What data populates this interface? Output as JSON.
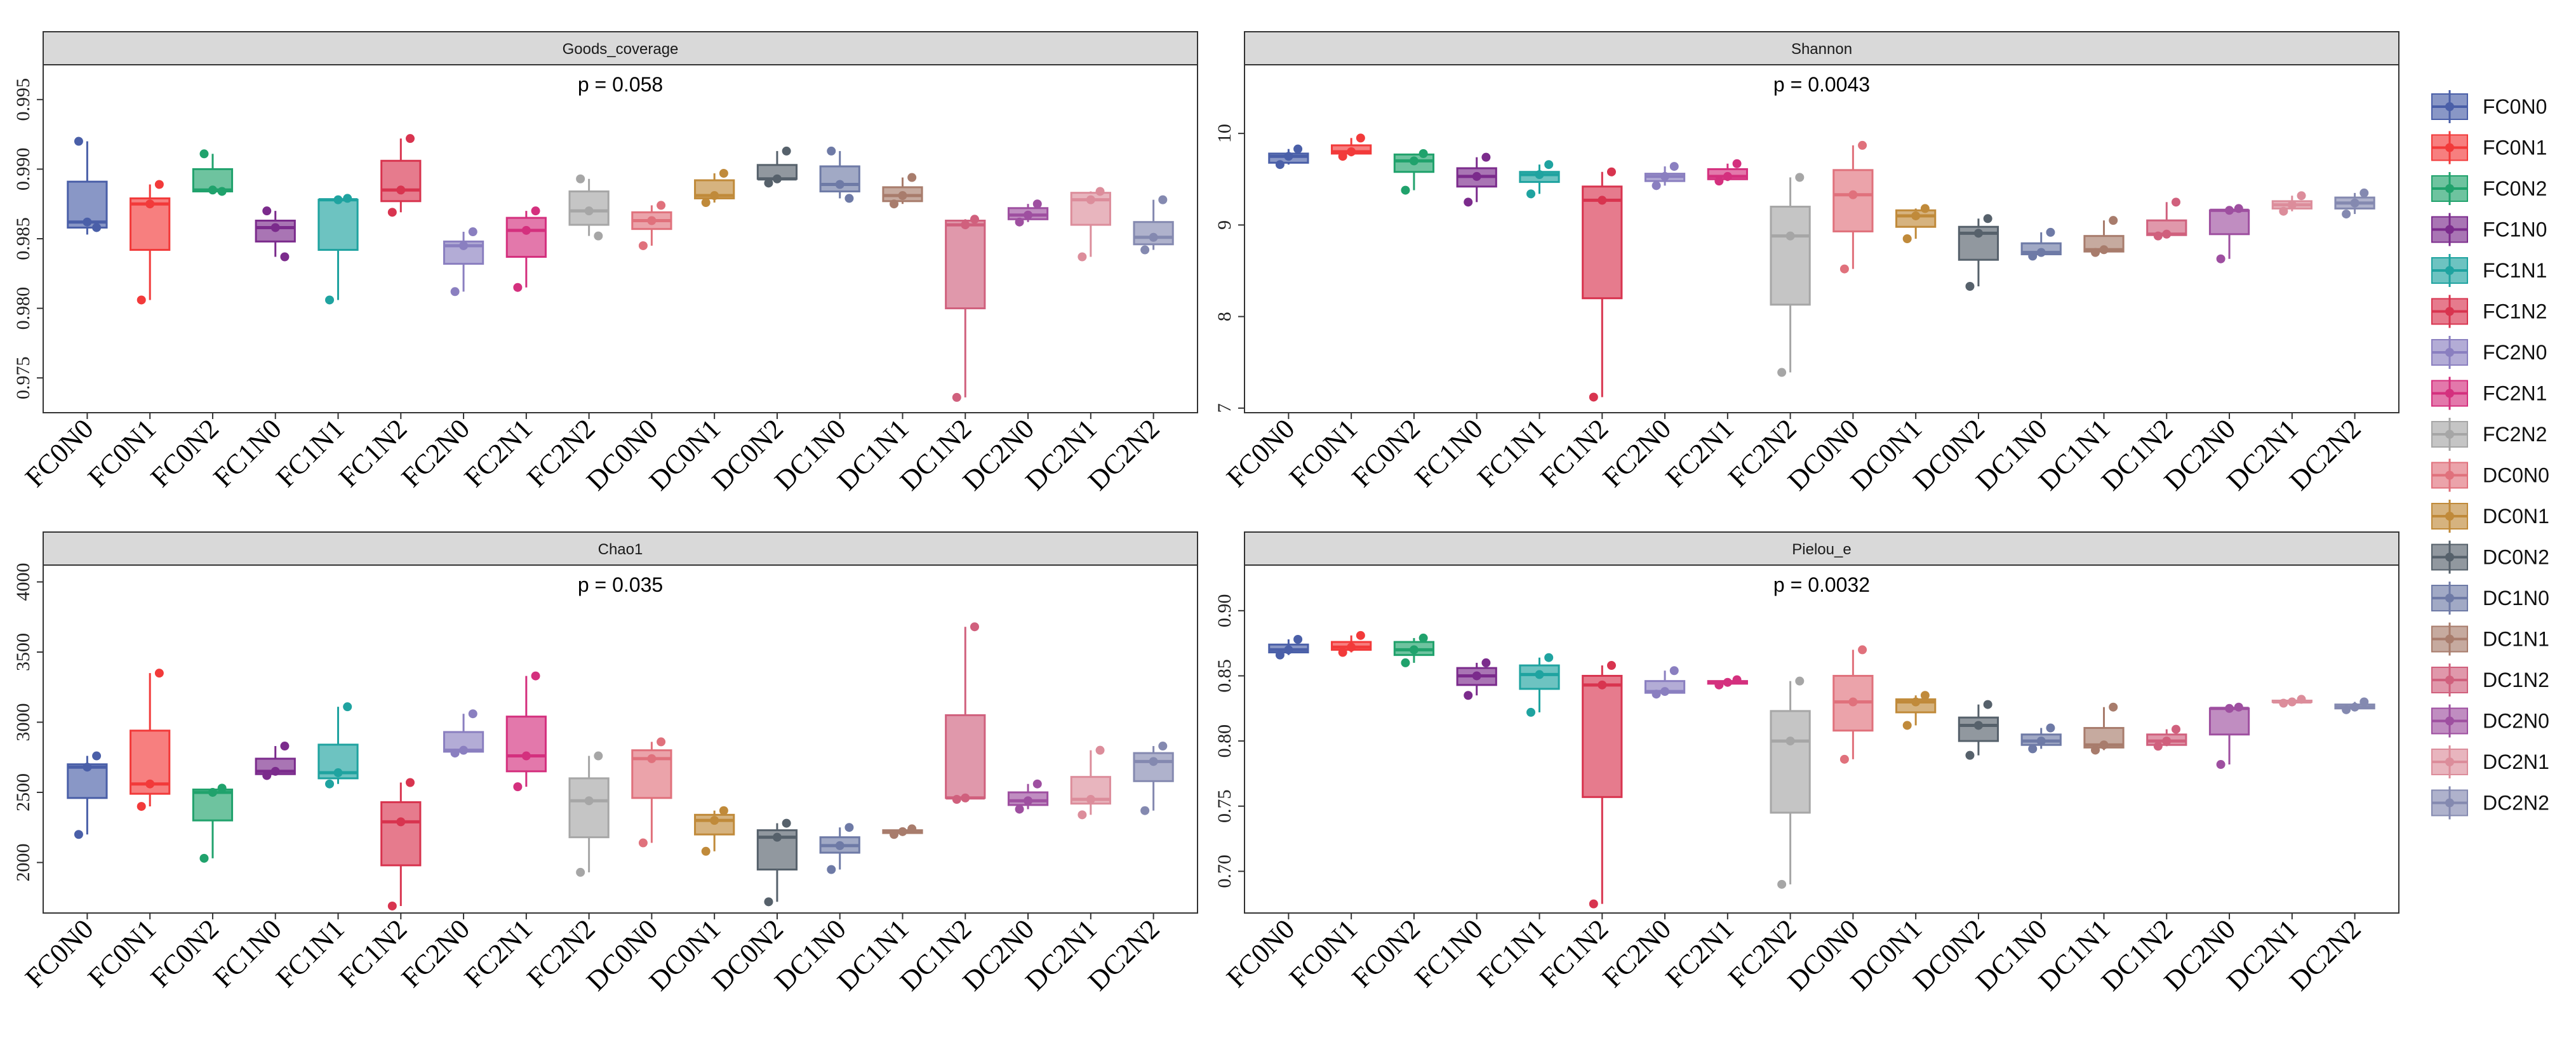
{
  "groups": [
    "FC0N0",
    "FC0N1",
    "FC0N2",
    "FC1N0",
    "FC1N1",
    "FC1N2",
    "FC2N0",
    "FC2N1",
    "FC2N2",
    "DC0N0",
    "DC0N1",
    "DC0N2",
    "DC1N0",
    "DC1N1",
    "DC1N2",
    "DC2N0",
    "DC2N1",
    "DC2N2"
  ],
  "colors": [
    "#4a5fa8",
    "#f23a3a",
    "#20a26c",
    "#7b2b8c",
    "#1fa3a0",
    "#d8344f",
    "#8a7fc0",
    "#d4307e",
    "#a6a6a6",
    "#e0717c",
    "#c08a3a",
    "#56616b",
    "#6e7aa6",
    "#a87c6c",
    "#d0607d",
    "#9e4fa0",
    "#dc8d9b",
    "#8489b0"
  ],
  "legend": {
    "items": [
      "FC0N0",
      "FC0N1",
      "FC0N2",
      "FC1N0",
      "FC1N1",
      "FC1N2",
      "FC2N0",
      "FC2N1",
      "FC2N2",
      "DC0N0",
      "DC0N1",
      "DC0N2",
      "DC1N0",
      "DC1N1",
      "DC1N2",
      "DC2N0",
      "DC2N1",
      "DC2N2"
    ]
  },
  "chart_data": [
    {
      "type": "box",
      "title": "Goods_coverage",
      "p_label": "p = 0.058",
      "ylim": [
        0.9725,
        0.9975
      ],
      "yticks": [
        0.975,
        0.98,
        0.985,
        0.99,
        0.995
      ],
      "ytick_labels": [
        "0.975",
        "0.980",
        "0.985",
        "0.990",
        "0.995"
      ],
      "boxes": [
        [
          0.9853,
          0.9858,
          0.9862,
          0.9891,
          0.992
        ],
        [
          0.9806,
          0.9842,
          0.9875,
          0.9879,
          0.9889
        ],
        [
          0.9883,
          0.9884,
          0.9885,
          0.99,
          0.9911
        ],
        [
          0.9837,
          0.9848,
          0.9858,
          0.9863,
          0.987
        ],
        [
          0.9806,
          0.9842,
          0.9878,
          0.9878,
          0.9879
        ],
        [
          0.9869,
          0.9877,
          0.9885,
          0.9906,
          0.9922
        ],
        [
          0.9812,
          0.9832,
          0.9845,
          0.9848,
          0.9855
        ],
        [
          0.9815,
          0.9837,
          0.9856,
          0.9865,
          0.987
        ],
        [
          0.9852,
          0.986,
          0.987,
          0.9884,
          0.9893
        ],
        [
          0.9845,
          0.9857,
          0.9863,
          0.9869,
          0.9874
        ],
        [
          0.9876,
          0.9879,
          0.9881,
          0.9892,
          0.9897
        ],
        [
          0.989,
          0.9893,
          0.9893,
          0.9903,
          0.9913
        ],
        [
          0.9879,
          0.9884,
          0.9889,
          0.9902,
          0.9913
        ],
        [
          0.9875,
          0.9877,
          0.9881,
          0.9887,
          0.9894
        ],
        [
          0.9736,
          0.98,
          0.986,
          0.9863,
          0.9864
        ],
        [
          0.9862,
          0.9864,
          0.9867,
          0.9872,
          0.9875
        ],
        [
          0.9837,
          0.986,
          0.9878,
          0.9883,
          0.9884
        ],
        [
          0.9842,
          0.9846,
          0.9851,
          0.9862,
          0.9878
        ]
      ],
      "points": [
        [
          0.992,
          0.9862,
          0.9858
        ],
        [
          0.9806,
          0.9875,
          0.9889
        ],
        [
          0.9911,
          0.9885,
          0.9884
        ],
        [
          0.987,
          0.9858,
          0.9837
        ],
        [
          0.9806,
          0.9878,
          0.9879
        ],
        [
          0.9869,
          0.9885,
          0.9922
        ],
        [
          0.9812,
          0.9845,
          0.9855
        ],
        [
          0.9815,
          0.9856,
          0.987
        ],
        [
          0.9893,
          0.987,
          0.9852
        ],
        [
          0.9845,
          0.9863,
          0.9874
        ],
        [
          0.9876,
          0.9881,
          0.9897
        ],
        [
          0.989,
          0.9893,
          0.9913
        ],
        [
          0.9913,
          0.9889,
          0.9879
        ],
        [
          0.9875,
          0.9881,
          0.9894
        ],
        [
          0.9736,
          0.986,
          0.9864
        ],
        [
          0.9862,
          0.9867,
          0.9875
        ],
        [
          0.9837,
          0.9878,
          0.9884
        ],
        [
          0.9842,
          0.9851,
          0.9878
        ]
      ]
    },
    {
      "type": "box",
      "title": "Shannon",
      "p_label": "p = 0.0043",
      "ylim": [
        6.95,
        10.75
      ],
      "yticks": [
        7,
        8,
        9,
        10
      ],
      "ytick_labels": [
        "7",
        "8",
        "9",
        "10"
      ],
      "boxes": [
        [
          9.66,
          9.68,
          9.75,
          9.78,
          9.83
        ],
        [
          9.75,
          9.78,
          9.8,
          9.87,
          9.95
        ],
        [
          9.38,
          9.58,
          9.7,
          9.77,
          9.78
        ],
        [
          9.25,
          9.42,
          9.53,
          9.62,
          9.74
        ],
        [
          9.34,
          9.47,
          9.55,
          9.58,
          9.66
        ],
        [
          7.12,
          8.2,
          9.27,
          9.42,
          9.58
        ],
        [
          9.43,
          9.48,
          9.53,
          9.56,
          9.64
        ],
        [
          9.48,
          9.5,
          9.53,
          9.61,
          9.67
        ],
        [
          7.39,
          8.13,
          8.88,
          9.2,
          9.52
        ],
        [
          8.52,
          8.93,
          9.33,
          9.6,
          9.87
        ],
        [
          8.85,
          8.98,
          9.1,
          9.16,
          9.18
        ],
        [
          8.33,
          8.62,
          8.91,
          8.98,
          9.07
        ],
        [
          8.66,
          8.68,
          8.7,
          8.8,
          8.92
        ],
        [
          8.7,
          8.71,
          8.73,
          8.88,
          9.05
        ],
        [
          8.88,
          8.89,
          8.9,
          9.05,
          9.25
        ],
        [
          8.63,
          8.9,
          9.16,
          9.16,
          9.18
        ],
        [
          9.15,
          9.18,
          9.22,
          9.26,
          9.32
        ],
        [
          9.12,
          9.18,
          9.24,
          9.3,
          9.35
        ]
      ],
      "points": [
        [
          9.66,
          9.75,
          9.83
        ],
        [
          9.75,
          9.8,
          9.95
        ],
        [
          9.38,
          9.7,
          9.78
        ],
        [
          9.25,
          9.53,
          9.74
        ],
        [
          9.34,
          9.55,
          9.66
        ],
        [
          7.12,
          9.27,
          9.58
        ],
        [
          9.43,
          9.53,
          9.64
        ],
        [
          9.48,
          9.53,
          9.67
        ],
        [
          7.39,
          8.88,
          9.52
        ],
        [
          8.52,
          9.33,
          9.87
        ],
        [
          8.85,
          9.1,
          9.18
        ],
        [
          8.33,
          8.91,
          9.07
        ],
        [
          8.66,
          8.7,
          8.92
        ],
        [
          8.7,
          8.73,
          9.05
        ],
        [
          8.88,
          8.9,
          9.25
        ],
        [
          8.63,
          9.16,
          9.18
        ],
        [
          9.15,
          9.22,
          9.32
        ],
        [
          9.12,
          9.24,
          9.35
        ]
      ]
    },
    {
      "type": "box",
      "title": "Chao1",
      "p_label": "p = 0.035",
      "ylim": [
        1640,
        4120
      ],
      "yticks": [
        2000,
        2500,
        3000,
        3500,
        4000
      ],
      "ytick_labels": [
        "2000",
        "2500",
        "3000",
        "3500",
        "4000"
      ],
      "boxes": [
        [
          2200,
          2460,
          2680,
          2700,
          2760
        ],
        [
          2400,
          2490,
          2560,
          2940,
          3350
        ],
        [
          2030,
          2300,
          2500,
          2520,
          2530
        ],
        [
          2620,
          2630,
          2650,
          2740,
          2830
        ],
        [
          2560,
          2600,
          2640,
          2840,
          3110
        ],
        [
          1690,
          1980,
          2290,
          2430,
          2570
        ],
        [
          2780,
          2790,
          2800,
          2930,
          3060
        ],
        [
          2540,
          2650,
          2760,
          3040,
          3330
        ],
        [
          1930,
          2180,
          2440,
          2600,
          2760
        ],
        [
          2140,
          2460,
          2740,
          2800,
          2860
        ],
        [
          2080,
          2200,
          2300,
          2340,
          2370
        ],
        [
          1720,
          1950,
          2180,
          2230,
          2280
        ],
        [
          1950,
          2070,
          2120,
          2180,
          2250
        ],
        [
          2200,
          2210,
          2220,
          2230,
          2240
        ],
        [
          2450,
          2460,
          2460,
          3050,
          3680
        ],
        [
          2380,
          2410,
          2440,
          2500,
          2560
        ],
        [
          2340,
          2420,
          2450,
          2610,
          2800
        ],
        [
          2370,
          2580,
          2720,
          2780,
          2830
        ]
      ],
      "points": [
        [
          2200,
          2680,
          2760
        ],
        [
          2400,
          2560,
          3350
        ],
        [
          2030,
          2500,
          2530
        ],
        [
          2620,
          2650,
          2830
        ],
        [
          2560,
          2640,
          3110
        ],
        [
          1690,
          2290,
          2570
        ],
        [
          2780,
          2800,
          3060
        ],
        [
          2540,
          2760,
          3330
        ],
        [
          1930,
          2440,
          2760
        ],
        [
          2140,
          2740,
          2860
        ],
        [
          2080,
          2300,
          2370
        ],
        [
          1720,
          2180,
          2280
        ],
        [
          1950,
          2120,
          2250
        ],
        [
          2200,
          2220,
          2240
        ],
        [
          2450,
          2460,
          3680
        ],
        [
          2380,
          2440,
          2560
        ],
        [
          2340,
          2450,
          2800
        ],
        [
          2370,
          2720,
          2830
        ]
      ]
    },
    {
      "type": "box",
      "title": "Pielou_e",
      "p_label": "p = 0.0032",
      "ylim": [
        0.668,
        0.935
      ],
      "yticks": [
        0.7,
        0.75,
        0.8,
        0.85,
        0.9
      ],
      "ytick_labels": [
        "0.70",
        "0.75",
        "0.80",
        "0.85",
        "0.90"
      ],
      "boxes": [
        [
          0.866,
          0.868,
          0.87,
          0.874,
          0.878
        ],
        [
          0.868,
          0.87,
          0.872,
          0.876,
          0.881
        ],
        [
          0.86,
          0.866,
          0.87,
          0.876,
          0.879
        ],
        [
          0.835,
          0.843,
          0.85,
          0.856,
          0.86
        ],
        [
          0.822,
          0.84,
          0.851,
          0.858,
          0.864
        ],
        [
          0.675,
          0.757,
          0.843,
          0.85,
          0.858
        ],
        [
          0.836,
          0.837,
          0.838,
          0.846,
          0.854
        ],
        [
          0.843,
          0.844,
          0.845,
          0.846,
          0.847
        ],
        [
          0.69,
          0.745,
          0.8,
          0.823,
          0.846
        ],
        [
          0.786,
          0.808,
          0.83,
          0.85,
          0.87
        ],
        [
          0.812,
          0.822,
          0.83,
          0.832,
          0.835
        ],
        [
          0.789,
          0.8,
          0.812,
          0.818,
          0.828
        ],
        [
          0.794,
          0.797,
          0.8,
          0.805,
          0.81
        ],
        [
          0.793,
          0.795,
          0.797,
          0.81,
          0.826
        ],
        [
          0.796,
          0.797,
          0.8,
          0.805,
          0.809
        ],
        [
          0.782,
          0.805,
          0.825,
          0.825,
          0.826
        ],
        [
          0.829,
          0.83,
          0.83,
          0.831,
          0.832
        ],
        [
          0.824,
          0.825,
          0.826,
          0.828,
          0.83
        ]
      ],
      "points": [
        [
          0.866,
          0.87,
          0.878
        ],
        [
          0.868,
          0.872,
          0.881
        ],
        [
          0.86,
          0.87,
          0.879
        ],
        [
          0.835,
          0.85,
          0.86
        ],
        [
          0.822,
          0.851,
          0.864
        ],
        [
          0.675,
          0.843,
          0.858
        ],
        [
          0.836,
          0.838,
          0.854
        ],
        [
          0.843,
          0.845,
          0.847
        ],
        [
          0.69,
          0.8,
          0.846
        ],
        [
          0.786,
          0.83,
          0.87
        ],
        [
          0.812,
          0.83,
          0.835
        ],
        [
          0.789,
          0.812,
          0.828
        ],
        [
          0.794,
          0.8,
          0.81
        ],
        [
          0.793,
          0.797,
          0.826
        ],
        [
          0.796,
          0.8,
          0.809
        ],
        [
          0.782,
          0.825,
          0.826
        ],
        [
          0.829,
          0.83,
          0.832
        ],
        [
          0.824,
          0.826,
          0.83
        ]
      ]
    }
  ]
}
